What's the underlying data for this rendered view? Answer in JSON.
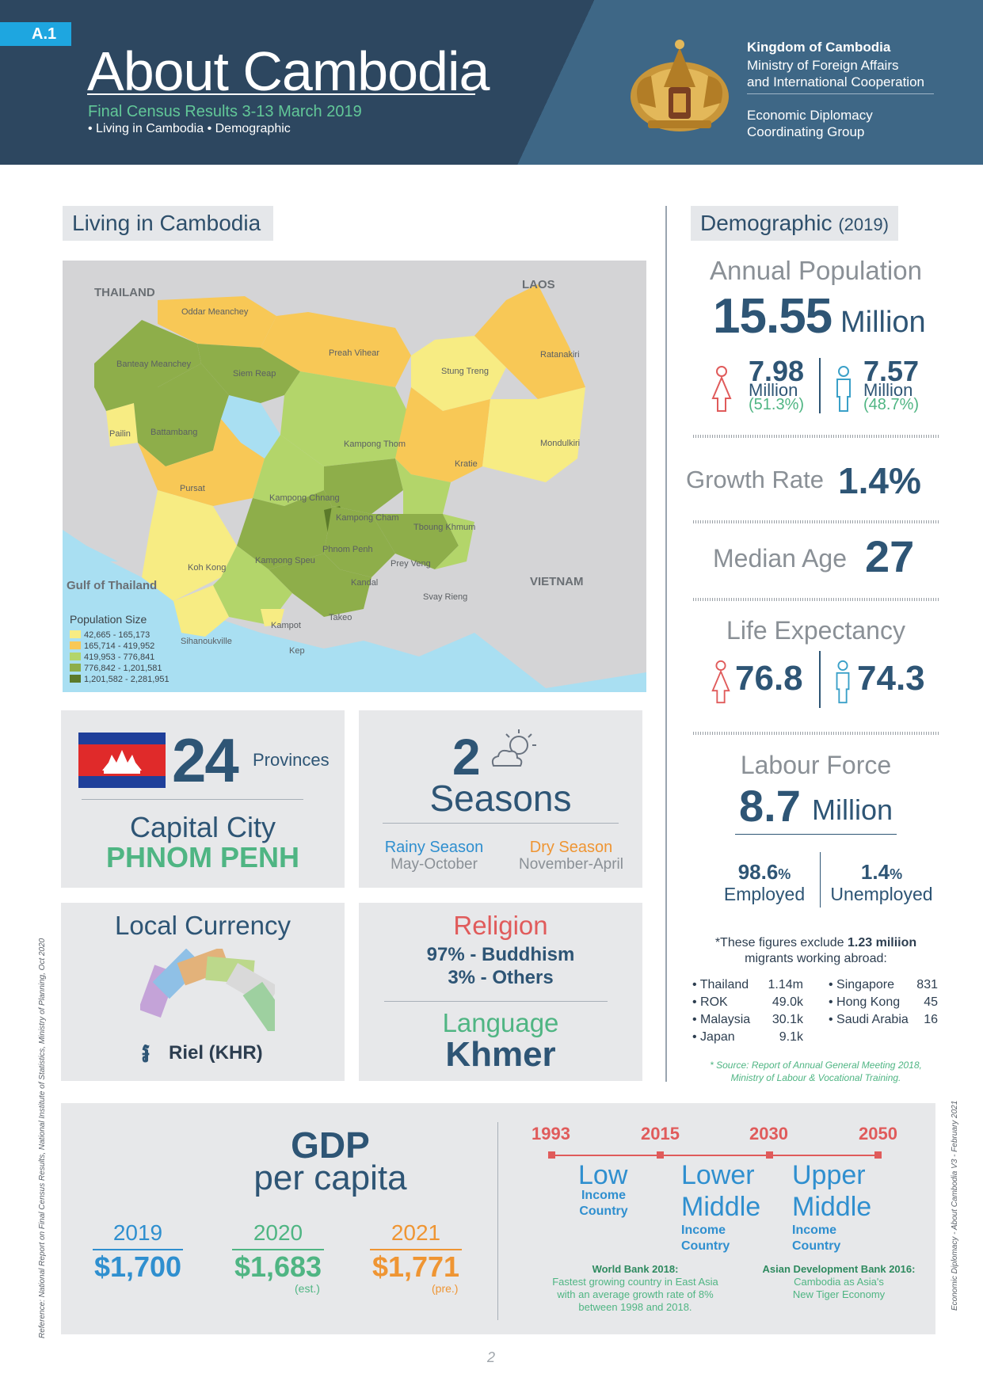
{
  "header": {
    "badge": "A.1",
    "title": "About Cambodia",
    "subtitle": "Final Census Results 3-13 March 2019",
    "nav": "• Living in Cambodia • Demographic",
    "org_name": "Kingdom of Cambodia",
    "org_ministry_1": "Ministry of Foreign Affairs",
    "org_ministry_2": "and International Cooperation",
    "org_group_1": "Economic Diplomacy",
    "org_group_2": "Coordinating Group"
  },
  "living": {
    "tab_label": "Living in Cambodia",
    "map": {
      "countries": [
        "THAILAND",
        "LAOS",
        "VIETNAM",
        "Gulf of Thailand"
      ],
      "provinces": [
        "Oddar Meanchey",
        "Banteay Meanchey",
        "Siem Reap",
        "Preah Vihear",
        "Stung Treng",
        "Ratanakiri",
        "Pailin",
        "Battambang",
        "Kampong Thom",
        "Kratie",
        "Mondulkiri",
        "Pursat",
        "Kampong Chnang",
        "Kampong Cham",
        "Tboung Khmum",
        "Kampong Speu",
        "Phnom Penh",
        "Prey Veng",
        "Koh Kong",
        "Kandal",
        "Svay Rieng",
        "Kampot",
        "Takeo",
        "Sihanoukville",
        "Kep"
      ],
      "legend_title": "Population Size",
      "legend": [
        {
          "label": "42,665 - 165,173",
          "color": "#f7ec83"
        },
        {
          "label": "165,714 - 419,952",
          "color": "#f8c856"
        },
        {
          "label": "419,953 - 776,841",
          "color": "#b3d56a"
        },
        {
          "label": "776,842 - 1,201,581",
          "color": "#8eae4a"
        },
        {
          "label": "1,201,582 - 2,281,951",
          "color": "#5b7a2a"
        }
      ]
    },
    "provinces_count": "24",
    "provinces_label": "Provinces",
    "capital_label": "Capital City",
    "capital": "PHNOM PENH",
    "seasons_count": "2",
    "seasons_label": "Seasons",
    "rainy_label": "Rainy Season",
    "rainy_months": "May-October",
    "dry_label": "Dry Season",
    "dry_months": "November-April",
    "currency_title": "Local Currency",
    "currency_name": "Riel (KHR)",
    "religion_title": "Religion",
    "religion_1": "97% - Buddhism",
    "religion_2": "3% - Others",
    "language_title": "Language",
    "language": "Khmer"
  },
  "demographic": {
    "tab_label": "Demographic",
    "tab_year": "(2019)",
    "population_title": "Annual Population",
    "population_value": "15.55",
    "population_unit": "Million",
    "female_value": "7.98",
    "female_unit": "Million",
    "female_pct": "(51.3%)",
    "male_value": "7.57",
    "male_unit": "Million",
    "male_pct": "(48.7%)",
    "growth_label": "Growth Rate",
    "growth_value": "1.4%",
    "median_label": "Median Age",
    "median_value": "27",
    "life_label": "Life Expectancy",
    "life_female": "76.8",
    "life_male": "74.3",
    "labour_label": "Labour Force",
    "labour_value": "8.7",
    "labour_unit": "Million",
    "employed_value": "98.6",
    "employed_pct_sign": "%",
    "employed_label": "Employed",
    "unemployed_value": "1.4",
    "unemployed_pct_sign": "%",
    "unemployed_label": "Unemployed",
    "migrants_note_1": "*These figures exclude",
    "migrants_note_bold": "1.23 miliion",
    "migrants_note_2": "migrants working abroad:",
    "migrants_left": [
      {
        "country": "• Thailand",
        "value": "1.14m"
      },
      {
        "country": "• ROK",
        "value": "49.0k"
      },
      {
        "country": "• Malaysia",
        "value": "30.1k"
      },
      {
        "country": "• Japan",
        "value": "9.1k"
      }
    ],
    "migrants_right": [
      {
        "country": "• Singapore",
        "value": "831"
      },
      {
        "country": "• Hong Kong",
        "value": "45"
      },
      {
        "country": "• Saudi Arabia",
        "value": "16"
      }
    ],
    "source_1": "* Source: Report of Annual General Meeting 2018,",
    "source_2": "Ministry of Labour & Vocational Training."
  },
  "gdp": {
    "title_1": "GDP",
    "title_2": "per capita",
    "years": [
      {
        "year": "2019",
        "value": "$1,700",
        "note": "",
        "color": "#2f8fcf"
      },
      {
        "year": "2020",
        "value": "$1,683",
        "note": "(est.)",
        "color": "#4fb583"
      },
      {
        "year": "2021",
        "value": "$1,771",
        "note": "(pre.)",
        "color": "#ef9533"
      }
    ],
    "timeline_years": [
      "1993",
      "2015",
      "2030",
      "2050"
    ],
    "stage_1_a": "Low",
    "stage_1_b": "Income",
    "stage_1_c": "Country",
    "stage_2_a": "Lower",
    "stage_2_b": "Middle",
    "stage_2_c": "Income",
    "stage_2_d": "Country",
    "stage_3_a": "Upper",
    "stage_3_b": "Middle",
    "stage_3_c": "Income",
    "stage_3_d": "Country",
    "wb_title": "World Bank 2018:",
    "wb_1": "Fastest growing country in East Asia",
    "wb_2": "with an average growth rate of 8%",
    "wb_3": "between 1998 and 2018.",
    "adb_title": "Asian Development Bank 2016:",
    "adb_1": "Cambodia as Asia's",
    "adb_2": "New Tiger Economy"
  },
  "footer": {
    "page_number": "2",
    "reference": "Reference: National Report on Final Census Results, National Institute of Statistics, Ministry of Planning, Oct 2020",
    "side_note": "Economic Diplomacy - About Cambodia V3 - February 2021"
  }
}
